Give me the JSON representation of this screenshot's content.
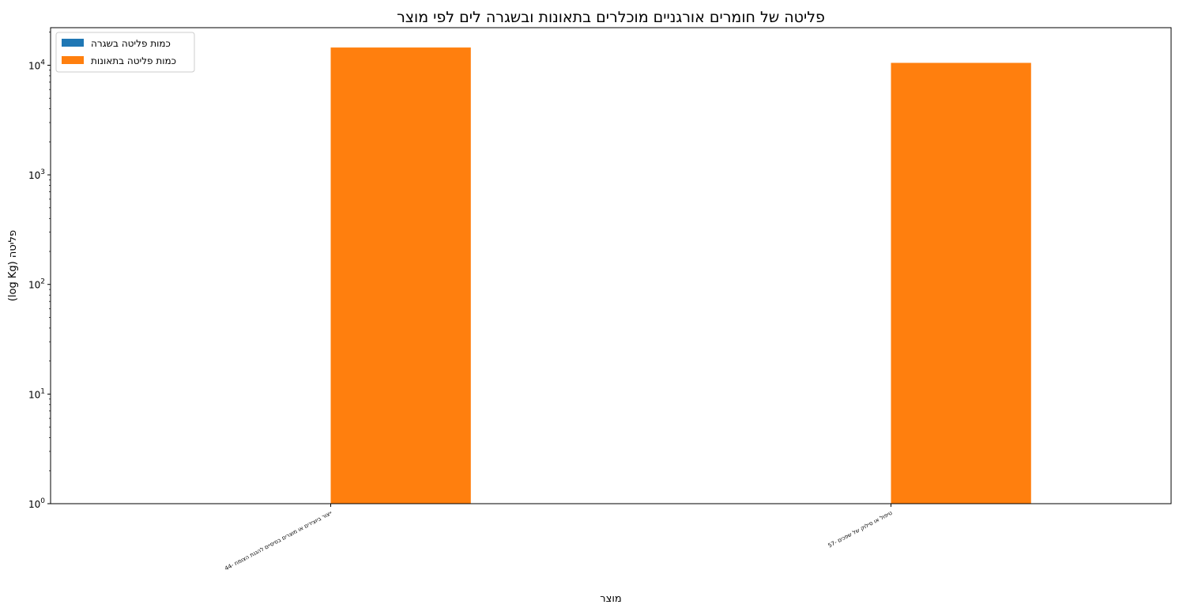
{
  "chart_data": {
    "type": "bar",
    "title": "פליטה של חומרים אורגניים מוכלרים בתאונות ובשגרה לים לפי מוצר",
    "xlabel": "מוצר",
    "ylabel": "(log Kg) פליטה",
    "yscale": "log",
    "ylim": [
      1,
      22000
    ],
    "yticks": [
      {
        "value": 1,
        "base": "10",
        "exp": "0"
      },
      {
        "value": 10,
        "base": "10",
        "exp": "1"
      },
      {
        "value": 100,
        "base": "10",
        "exp": "2"
      },
      {
        "value": 1000,
        "base": "10",
        "exp": "3"
      },
      {
        "value": 10000,
        "base": "10",
        "exp": "4"
      }
    ],
    "categories": [
      "44- ייצור ביוצידים או מוצרים בסיסיים להגנת הצומח",
      "57- טיפול או סילוק של שפכים"
    ],
    "series": [
      {
        "name": "כמות פליטה בשגרה",
        "color": "#1f77b4",
        "values": [
          0,
          0
        ]
      },
      {
        "name": "כמות פליטה בתאונות",
        "color": "#ff7f0e",
        "values": [
          14500,
          10500
        ]
      }
    ],
    "legend_position": "top-left",
    "grid": false
  }
}
